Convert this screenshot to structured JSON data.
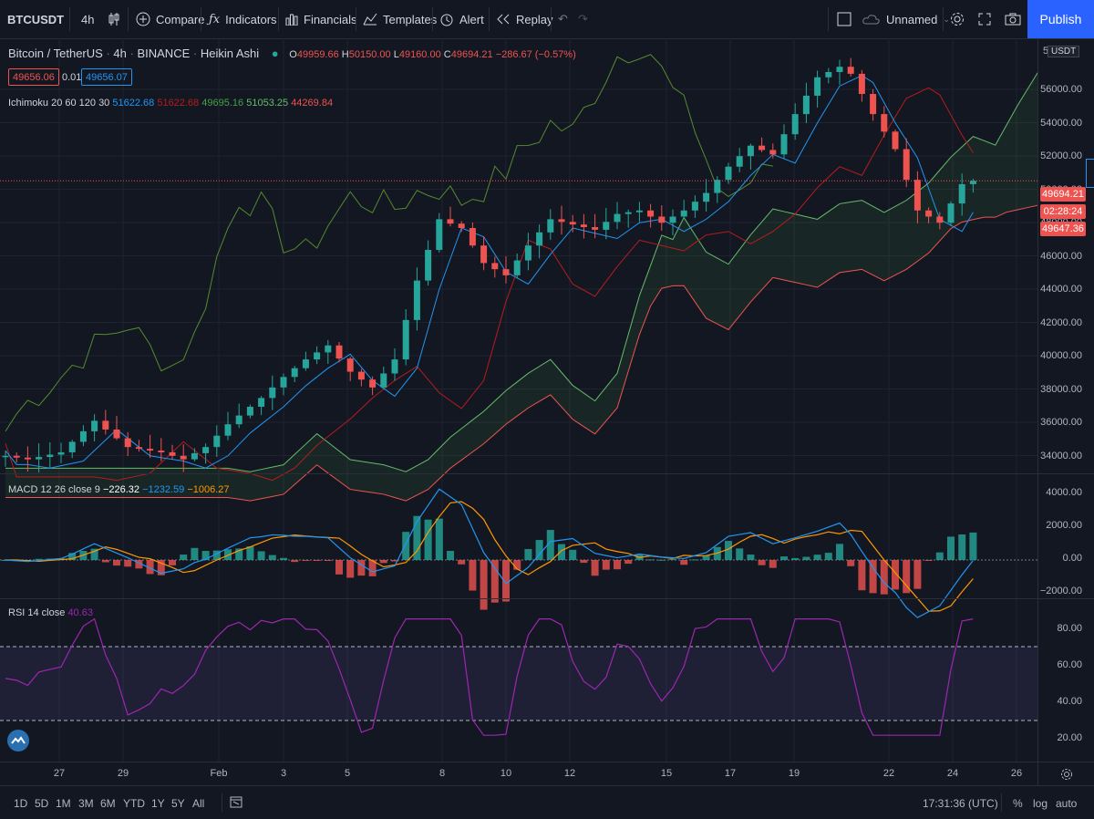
{
  "toolbar": {
    "symbol": "BTCUSDT",
    "interval": "4h",
    "compare": "Compare",
    "indicators": "Indicators",
    "financials": "Financials",
    "templates": "Templates",
    "alert": "Alert",
    "replay": "Replay",
    "layout_name": "Unnamed",
    "publish": "Publish"
  },
  "legend": {
    "title_symbol": "Bitcoin / TetherUS",
    "title_interval": "4h",
    "title_exchange": "BINANCE",
    "title_style": "Heikin Ashi",
    "o_label": "O",
    "o_value": "49959.66",
    "h_label": "H",
    "h_value": "50150.00",
    "l_label": "L",
    "l_value": "49160.00",
    "c_label": "C",
    "c_value": "49694.21",
    "change": "−286.67 (−0.57%)",
    "sell_price": "49656.06",
    "spread": "0.01",
    "buy_price": "49656.07",
    "ichimoku_label": "Ichimoku 20 60 120 30",
    "ichi_conversion": "51622.68",
    "ichi_base": "51622.68",
    "ichi_lagging": "49695.16",
    "ichi_lead1": "51053.25",
    "ichi_lead2": "44269.84"
  },
  "macd": {
    "label": "MACD 12 26 close 9",
    "hist": "−226.32",
    "macd": "−1232.59",
    "signal": "−1006.27"
  },
  "rsi": {
    "label": "RSI 14 close",
    "value": "40.63"
  },
  "price_axis": {
    "currency": "USDT",
    "top_partial": "5",
    "labels": [
      "56000.00",
      "54000.00",
      "52000.00",
      "50000.00",
      "48000.00",
      "46000.00",
      "44000.00",
      "42000.00",
      "40000.00",
      "38000.00",
      "36000.00",
      "34000.00"
    ],
    "last_price": "49694.21",
    "countdown": "02:28:24",
    "other_price": "49647.36"
  },
  "macd_axis": [
    "4000.00",
    "2000.00",
    "0.00",
    "−2000.00"
  ],
  "rsi_axis": [
    "80.00",
    "60.00",
    "40.00",
    "20.00"
  ],
  "time_axis": [
    "27",
    "29",
    "Feb",
    "3",
    "5",
    "8",
    "10",
    "12",
    "15",
    "17",
    "19",
    "22",
    "24",
    "26"
  ],
  "bottombar": {
    "ranges": [
      "1D",
      "5D",
      "1M",
      "3M",
      "6M",
      "YTD",
      "1Y",
      "5Y",
      "All"
    ],
    "clock": "17:31:36 (UTC)",
    "percent": "%",
    "log": "log",
    "auto": "auto"
  },
  "colors": {
    "up": "#26a69a",
    "down": "#ef5350",
    "conversion": "#2196f3",
    "base": "#b71c1c",
    "lagging": "#43a047",
    "lead1": "#66bb6a",
    "lead2": "#ef5350",
    "rsi": "#9c27b0",
    "macd_signal": "#ff9800",
    "accent": "#2962ff"
  },
  "chart_data": {
    "type": "candlestick",
    "style": "Heikin Ashi",
    "ylim": [
      33000,
      57200
    ],
    "x_ticks": [
      "27",
      "29",
      "Feb",
      "3",
      "5",
      "8",
      "10",
      "12",
      "15",
      "17",
      "19",
      "22",
      "24",
      "26"
    ],
    "price_trend": [
      [
        0,
        34000
      ],
      [
        2,
        33800
      ],
      [
        5,
        34200
      ],
      [
        8,
        36000
      ],
      [
        11,
        34500
      ],
      [
        14,
        34200
      ],
      [
        16,
        33800
      ],
      [
        18,
        34500
      ],
      [
        20,
        35800
      ],
      [
        23,
        37300
      ],
      [
        25,
        38500
      ],
      [
        27,
        39500
      ],
      [
        29,
        40300
      ],
      [
        31,
        38800
      ],
      [
        33,
        37900
      ],
      [
        35,
        39500
      ],
      [
        37,
        44000
      ],
      [
        39,
        47500
      ],
      [
        41,
        47000
      ],
      [
        43,
        45000
      ],
      [
        45,
        44300
      ],
      [
        47,
        46000
      ],
      [
        49,
        47500
      ],
      [
        51,
        47200
      ],
      [
        53,
        46900
      ],
      [
        55,
        47800
      ],
      [
        57,
        48000
      ],
      [
        59,
        47300
      ],
      [
        61,
        48000
      ],
      [
        63,
        49000
      ],
      [
        65,
        50500
      ],
      [
        67,
        51700
      ],
      [
        69,
        51200
      ],
      [
        71,
        53500
      ],
      [
        73,
        55600
      ],
      [
        75,
        56200
      ],
      [
        76,
        55800
      ],
      [
        78,
        53500
      ],
      [
        80,
        51500
      ],
      [
        82,
        48000
      ],
      [
        84,
        47300
      ],
      [
        86,
        49500
      ],
      [
        87,
        49694.21
      ]
    ],
    "ichimoku": {
      "conversion_line": "51622.68",
      "base_line": "51622.68",
      "lagging_span": "49695.16",
      "lead_1": "51053.25",
      "lead_2": "44269.84"
    }
  }
}
